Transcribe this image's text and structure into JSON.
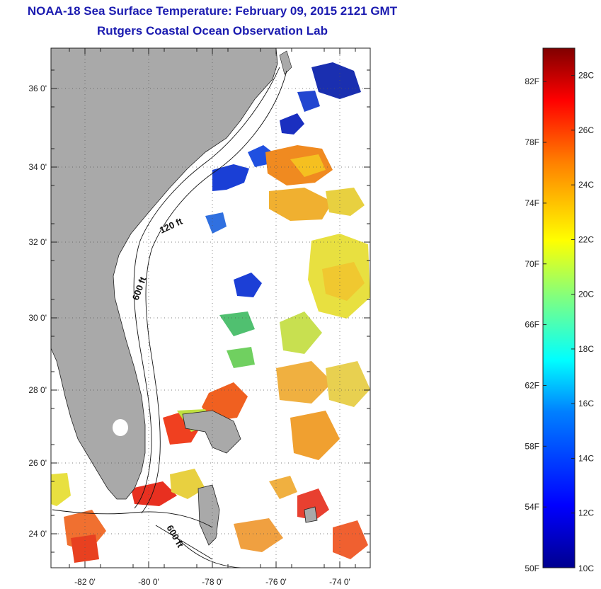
{
  "title": "NOAA-18 Sea Surface Temperature:  February 09, 2015 2121 GMT",
  "subtitle": "Rutgers Coastal Ocean Observation Lab",
  "map": {
    "lat_range": [
      23,
      37
    ],
    "lon_range": [
      -83,
      -73
    ],
    "lat_ticks": [
      "24 0'",
      "26 0'",
      "28 0'",
      "30 0'",
      "32 0'",
      "34 0'",
      "36 0'"
    ],
    "lon_ticks": [
      "-82 0'",
      "-80 0'",
      "-78 0'",
      "-76 0'",
      "-74 0'"
    ],
    "contour_labels": [
      "120 ft",
      "600 ft",
      "600 ft"
    ],
    "land_color": "#a9a9a9"
  },
  "colorbar": {
    "min_c": 10,
    "max_c": 29,
    "f_labels": [
      "82F",
      "78F",
      "74F",
      "70F",
      "66F",
      "62F",
      "58F",
      "54F",
      "50F"
    ],
    "c_labels": [
      "28C",
      "26C",
      "24C",
      "22C",
      "20C",
      "18C",
      "16C",
      "14C",
      "12C",
      "10C"
    ]
  }
}
